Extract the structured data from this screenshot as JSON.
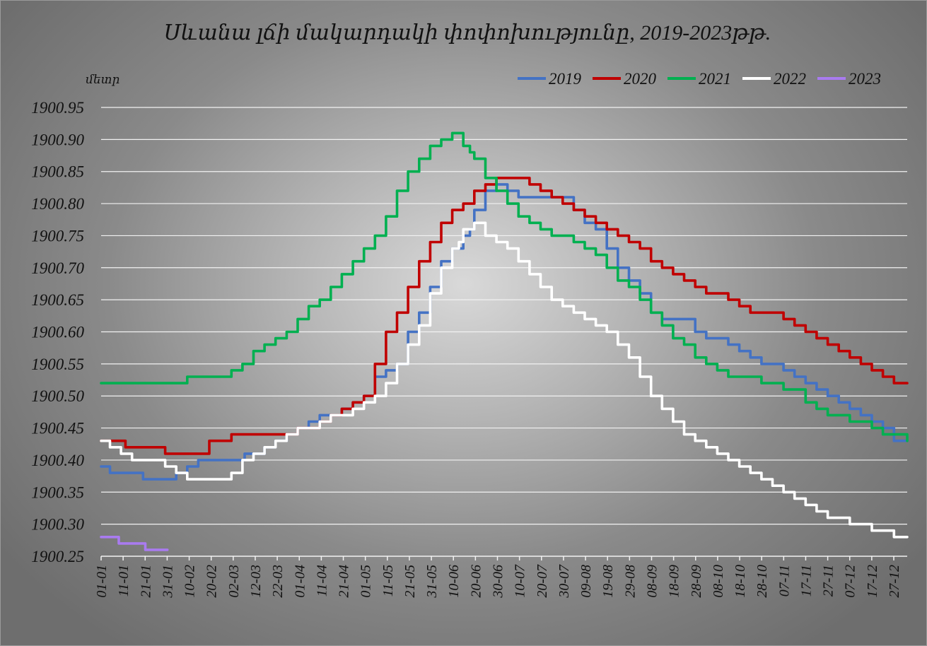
{
  "chart_data": {
    "type": "line",
    "title": "Սևանա լճի մակարդակի փոփոխությունը, 2019-2023թթ.",
    "ylabel": "մետր",
    "xlabel": "",
    "ylim": [
      1900.25,
      1900.95
    ],
    "yticks": [
      "1900.95",
      "1900.90",
      "1900.85",
      "1900.80",
      "1900.75",
      "1900.70",
      "1900.65",
      "1900.60",
      "1900.55",
      "1900.50",
      "1900.45",
      "1900.40",
      "1900.35",
      "1900.30",
      "1900.25"
    ],
    "xticks": [
      "01-01",
      "11-01",
      "21-01",
      "31-01",
      "10-02",
      "20-02",
      "02-03",
      "12-03",
      "22-03",
      "01-04",
      "11-04",
      "21-04",
      "01-05",
      "11-05",
      "21-05",
      "31-05",
      "10-06",
      "20-06",
      "30-06",
      "10-07",
      "20-07",
      "30-07",
      "09-08",
      "19-08",
      "29-08",
      "08-09",
      "18-09",
      "28-09",
      "08-10",
      "18-10",
      "28-10",
      "07-11",
      "17-11",
      "27-11",
      "07-12",
      "17-12",
      "27-12"
    ],
    "x_units": "day of year",
    "x_range": [
      1,
      366
    ],
    "grid": true,
    "legend": "top-right",
    "series": [
      {
        "name": "2019",
        "color": "#4472c4",
        "x": [
          1,
          5,
          10,
          15,
          20,
          31,
          35,
          40,
          45,
          50,
          55,
          60,
          66,
          70,
          75,
          80,
          85,
          90,
          95,
          100,
          105,
          110,
          115,
          120,
          125,
          130,
          135,
          140,
          145,
          150,
          155,
          160,
          165,
          168,
          170,
          175,
          180,
          185,
          190,
          195,
          200,
          205,
          210,
          215,
          220,
          225,
          230,
          235,
          240,
          245,
          250,
          255,
          260,
          265,
          270,
          275,
          280,
          285,
          290,
          295,
          300,
          305,
          310,
          315,
          320,
          325,
          330,
          335,
          340,
          345,
          350,
          355,
          360,
          366
        ],
        "y": [
          1900.39,
          1900.38,
          1900.38,
          1900.38,
          1900.37,
          1900.37,
          1900.38,
          1900.39,
          1900.4,
          1900.4,
          1900.4,
          1900.4,
          1900.41,
          1900.41,
          1900.42,
          1900.43,
          1900.44,
          1900.45,
          1900.46,
          1900.47,
          1900.47,
          1900.48,
          1900.49,
          1900.5,
          1900.53,
          1900.54,
          1900.55,
          1900.6,
          1900.63,
          1900.67,
          1900.71,
          1900.73,
          1900.75,
          1900.76,
          1900.79,
          1900.82,
          1900.83,
          1900.82,
          1900.81,
          1900.81,
          1900.81,
          1900.81,
          1900.81,
          1900.79,
          1900.77,
          1900.76,
          1900.73,
          1900.7,
          1900.68,
          1900.66,
          1900.63,
          1900.62,
          1900.62,
          1900.62,
          1900.6,
          1900.59,
          1900.59,
          1900.58,
          1900.57,
          1900.56,
          1900.55,
          1900.55,
          1900.54,
          1900.53,
          1900.52,
          1900.51,
          1900.5,
          1900.49,
          1900.48,
          1900.47,
          1900.46,
          1900.45,
          1900.43,
          1900.43
        ]
      },
      {
        "name": "2020",
        "color": "#c00000",
        "x": [
          1,
          8,
          12,
          20,
          25,
          30,
          35,
          40,
          45,
          50,
          55,
          60,
          65,
          70,
          75,
          80,
          85,
          90,
          95,
          100,
          105,
          110,
          115,
          120,
          125,
          130,
          135,
          140,
          145,
          150,
          155,
          160,
          165,
          170,
          175,
          180,
          185,
          190,
          195,
          200,
          205,
          210,
          215,
          220,
          225,
          230,
          235,
          240,
          245,
          250,
          255,
          260,
          265,
          270,
          275,
          280,
          285,
          290,
          295,
          300,
          305,
          310,
          315,
          320,
          325,
          330,
          335,
          340,
          345,
          350,
          355,
          360,
          366
        ],
        "y": [
          1900.43,
          1900.43,
          1900.42,
          1900.42,
          1900.42,
          1900.41,
          1900.41,
          1900.41,
          1900.41,
          1900.43,
          1900.43,
          1900.44,
          1900.44,
          1900.44,
          1900.44,
          1900.44,
          1900.44,
          1900.45,
          1900.45,
          1900.46,
          1900.47,
          1900.48,
          1900.49,
          1900.5,
          1900.55,
          1900.6,
          1900.63,
          1900.67,
          1900.71,
          1900.74,
          1900.77,
          1900.79,
          1900.8,
          1900.82,
          1900.83,
          1900.84,
          1900.84,
          1900.84,
          1900.83,
          1900.82,
          1900.81,
          1900.8,
          1900.79,
          1900.78,
          1900.77,
          1900.76,
          1900.75,
          1900.74,
          1900.73,
          1900.71,
          1900.7,
          1900.69,
          1900.68,
          1900.67,
          1900.66,
          1900.66,
          1900.65,
          1900.64,
          1900.63,
          1900.63,
          1900.63,
          1900.62,
          1900.61,
          1900.6,
          1900.59,
          1900.58,
          1900.57,
          1900.56,
          1900.55,
          1900.54,
          1900.53,
          1900.52,
          1900.52
        ]
      },
      {
        "name": "2021",
        "color": "#00b050",
        "x": [
          1,
          20,
          35,
          40,
          50,
          55,
          60,
          65,
          70,
          75,
          80,
          85,
          90,
          95,
          100,
          105,
          110,
          115,
          120,
          125,
          130,
          135,
          140,
          145,
          150,
          155,
          160,
          163,
          165,
          168,
          170,
          175,
          180,
          185,
          190,
          195,
          200,
          205,
          210,
          215,
          220,
          225,
          230,
          235,
          240,
          245,
          250,
          255,
          260,
          265,
          270,
          275,
          280,
          285,
          290,
          295,
          300,
          305,
          310,
          315,
          320,
          325,
          330,
          335,
          340,
          345,
          350,
          355,
          360,
          366
        ],
        "y": [
          1900.52,
          1900.52,
          1900.52,
          1900.53,
          1900.53,
          1900.53,
          1900.54,
          1900.55,
          1900.57,
          1900.58,
          1900.59,
          1900.6,
          1900.62,
          1900.64,
          1900.65,
          1900.67,
          1900.69,
          1900.71,
          1900.73,
          1900.75,
          1900.78,
          1900.82,
          1900.85,
          1900.87,
          1900.89,
          1900.9,
          1900.91,
          1900.91,
          1900.89,
          1900.88,
          1900.87,
          1900.84,
          1900.82,
          1900.8,
          1900.78,
          1900.77,
          1900.76,
          1900.75,
          1900.75,
          1900.74,
          1900.73,
          1900.72,
          1900.7,
          1900.68,
          1900.67,
          1900.65,
          1900.63,
          1900.61,
          1900.59,
          1900.58,
          1900.56,
          1900.55,
          1900.54,
          1900.53,
          1900.53,
          1900.53,
          1900.52,
          1900.52,
          1900.51,
          1900.51,
          1900.49,
          1900.48,
          1900.47,
          1900.47,
          1900.46,
          1900.46,
          1900.45,
          1900.44,
          1900.44,
          1900.43
        ]
      },
      {
        "name": "2022",
        "color": "#ffffff",
        "x": [
          1,
          5,
          10,
          15,
          20,
          30,
          35,
          40,
          45,
          50,
          55,
          60,
          65,
          70,
          75,
          80,
          85,
          90,
          95,
          100,
          105,
          110,
          115,
          120,
          125,
          130,
          135,
          140,
          145,
          150,
          155,
          160,
          163,
          165,
          170,
          175,
          180,
          185,
          190,
          195,
          200,
          205,
          210,
          215,
          220,
          225,
          230,
          235,
          240,
          245,
          250,
          255,
          260,
          265,
          270,
          275,
          280,
          285,
          290,
          295,
          300,
          305,
          310,
          315,
          320,
          325,
          330,
          335,
          340,
          345,
          350,
          355,
          360,
          366
        ],
        "y": [
          1900.43,
          1900.42,
          1900.41,
          1900.4,
          1900.4,
          1900.39,
          1900.38,
          1900.37,
          1900.37,
          1900.37,
          1900.37,
          1900.38,
          1900.4,
          1900.41,
          1900.42,
          1900.43,
          1900.44,
          1900.45,
          1900.45,
          1900.46,
          1900.47,
          1900.47,
          1900.48,
          1900.49,
          1900.5,
          1900.52,
          1900.55,
          1900.58,
          1900.61,
          1900.66,
          1900.7,
          1900.73,
          1900.74,
          1900.76,
          1900.77,
          1900.75,
          1900.74,
          1900.73,
          1900.71,
          1900.69,
          1900.67,
          1900.65,
          1900.64,
          1900.63,
          1900.62,
          1900.61,
          1900.6,
          1900.58,
          1900.56,
          1900.53,
          1900.5,
          1900.48,
          1900.46,
          1900.44,
          1900.43,
          1900.42,
          1900.41,
          1900.4,
          1900.39,
          1900.38,
          1900.37,
          1900.36,
          1900.35,
          1900.34,
          1900.33,
          1900.32,
          1900.31,
          1900.31,
          1900.3,
          1900.3,
          1900.29,
          1900.29,
          1900.28,
          1900.28
        ]
      },
      {
        "name": "2023",
        "color": "#a97bf0",
        "x": [
          1,
          7,
          9,
          20,
          21,
          31
        ],
        "y": [
          1900.28,
          1900.28,
          1900.27,
          1900.27,
          1900.26,
          1900.26
        ]
      }
    ]
  }
}
